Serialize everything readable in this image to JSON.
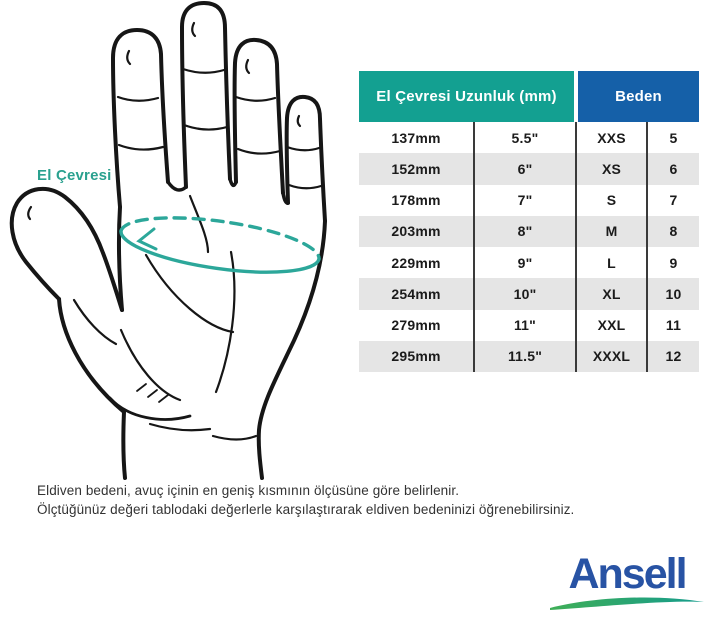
{
  "diagram": {
    "label": "El Çevresi",
    "accent_color": "#2AA18F",
    "line_color": "#161616"
  },
  "table": {
    "header_measure": "El Çevresi Uzunluk (mm)",
    "header_size": "Beden",
    "header_measure_color": "#13A091",
    "header_size_color": "#1560A8",
    "alt_row_color": "#E5E5E5",
    "rows": [
      {
        "mm": "137mm",
        "in": "5.5\"",
        "size": "XXS",
        "num": "5"
      },
      {
        "mm": "152mm",
        "in": "6\"",
        "size": "XS",
        "num": "6"
      },
      {
        "mm": "178mm",
        "in": "7\"",
        "size": "S",
        "num": "7"
      },
      {
        "mm": "203mm",
        "in": "8\"",
        "size": "M",
        "num": "8"
      },
      {
        "mm": "229mm",
        "in": "9\"",
        "size": "L",
        "num": "9"
      },
      {
        "mm": "254mm",
        "in": "10\"",
        "size": "XL",
        "num": "10"
      },
      {
        "mm": "279mm",
        "in": "11\"",
        "size": "XXL",
        "num": "11"
      },
      {
        "mm": "295mm",
        "in": "11.5\"",
        "size": "XXXL",
        "num": "12"
      }
    ]
  },
  "footnote": {
    "line1": "Eldiven bedeni, avuç içinin en geniş kısmının ölçüsüne göre belirlenir.",
    "line2": "Ölçtüğünüz değeri tablodaki değerlerle karşılaştırarak eldiven bedeninizi öğrenebilirsiniz."
  },
  "logo": {
    "text": "Ansell",
    "text_color": "#2853A4",
    "swoosh_color_left": "#3FAE57",
    "swoosh_color_right": "#159C8D"
  }
}
